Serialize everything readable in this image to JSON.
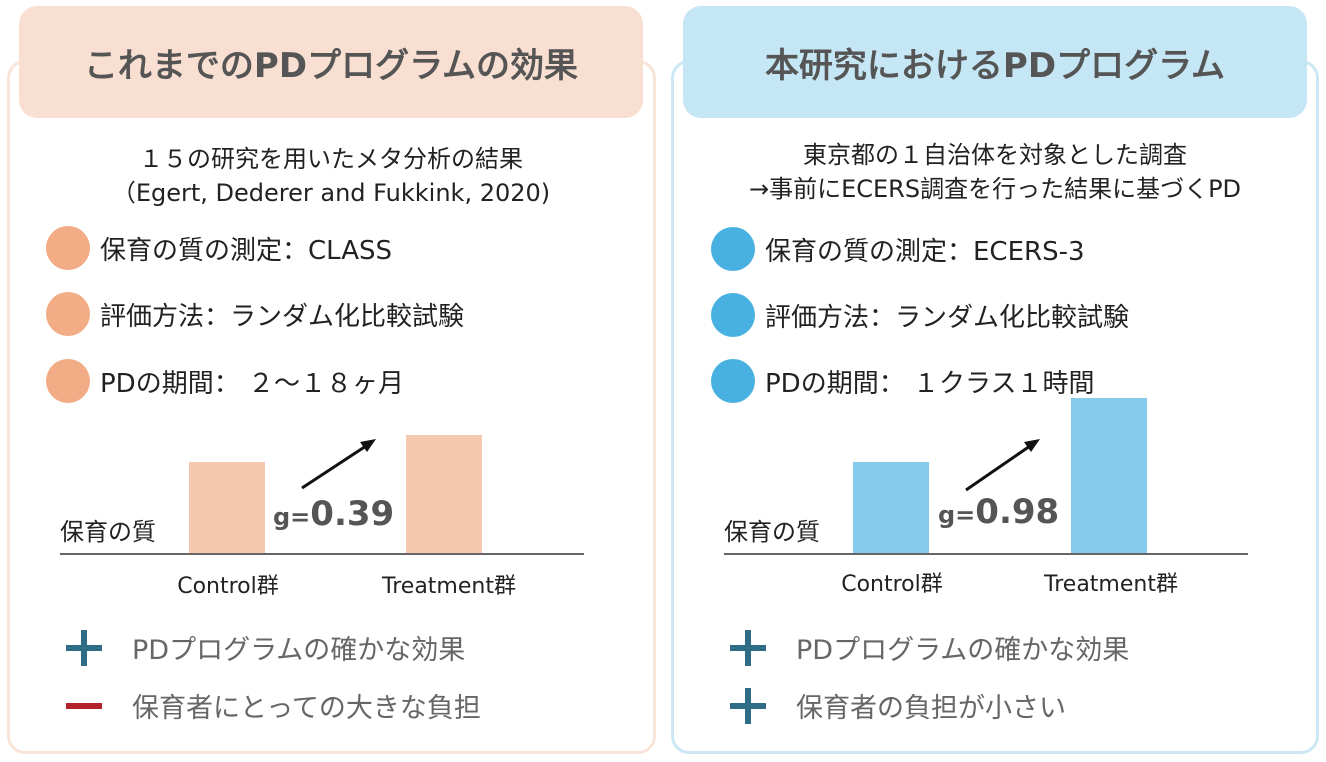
{
  "left": {
    "title": "これまでのPDプログラムの効果",
    "intro_line1": "１５の研究を用いたメタ分析の結果",
    "intro_line2": "（Egert, Dederer and Fukkink, 2020)",
    "bullets": [
      "保育の質の測定：CLASS",
      "評価方法：ランダム化比較試験",
      "PDの期間： ２～１８ヶ月"
    ],
    "chart_ylabel": "保育の質",
    "g_prefix": "g=",
    "g_value": "0.39",
    "points": [
      {
        "label": "＋",
        "text": "PDプログラムの確かな効果",
        "sign": "plus"
      },
      {
        "label": "－",
        "text": "保育者にとっての大きな負担",
        "sign": "minus"
      }
    ]
  },
  "right": {
    "title": "本研究におけるPDプログラム",
    "intro_line1": "東京都の１自治体を対象とした調査",
    "intro_line2": "→事前にECERS調査を行った結果に基づくPD",
    "bullets": [
      "保育の質の測定：ECERS-3",
      "評価方法：ランダム化比較試験",
      "PDの期間： １クラス１時間"
    ],
    "chart_ylabel": "保育の質",
    "g_prefix": "g=",
    "g_value": "0.98",
    "points": [
      {
        "label": "＋",
        "text": "PDプログラムの確かな効果",
        "sign": "plus"
      },
      {
        "label": "＋",
        "text": "保育者の負担が小さい",
        "sign": "plus"
      }
    ]
  },
  "chart_data": [
    {
      "type": "bar",
      "categories": [
        "Control群",
        "Treatment群"
      ],
      "values": [
        0.8,
        1.03
      ],
      "ylabel": "保育の質",
      "ylim": [
        0,
        1.4
      ],
      "color": "#f7c8b0",
      "annotation": "g=0.39"
    },
    {
      "type": "bar",
      "categories": [
        "Control群",
        "Treatment群"
      ],
      "values": [
        0.8,
        1.36
      ],
      "ylabel": "保育の質",
      "ylim": [
        0,
        1.4
      ],
      "color": "#85cbec",
      "annotation": "g=0.98"
    }
  ],
  "icons": {
    "bullet_left": "circle-icon",
    "bullet_right": "circle-icon",
    "arrow": "arrow-up-right-icon",
    "plus": "plus-icon",
    "minus": "minus-icon"
  },
  "colors": {
    "left_header_bg": "#f8dfd1",
    "right_header_bg": "#c5e6f5",
    "left_dot": "#f2ac86",
    "right_dot": "#48b1e1",
    "plus": "#2f6d86",
    "minus": "#b3232a"
  }
}
